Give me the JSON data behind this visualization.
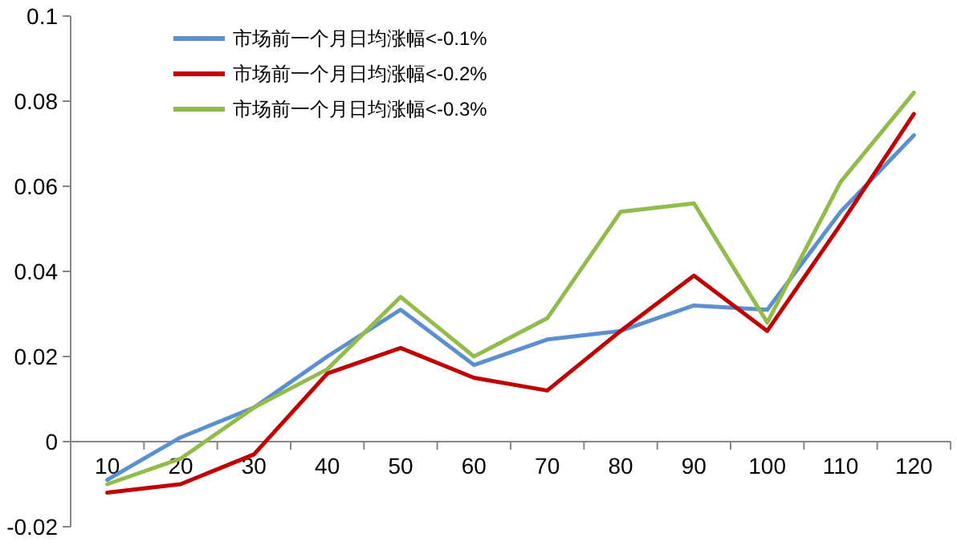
{
  "chart_data": {
    "type": "line",
    "categories": [
      "10",
      "20",
      "30",
      "40",
      "50",
      "60",
      "70",
      "80",
      "90",
      "100",
      "110",
      "120"
    ],
    "series": [
      {
        "name": "市场前一个月日均涨幅<-0.1%",
        "color": "#5b8fd0",
        "values": [
          -0.009,
          0.001,
          0.008,
          0.02,
          0.031,
          0.018,
          0.024,
          0.026,
          0.032,
          0.031,
          0.054,
          0.072
        ]
      },
      {
        "name": "市场前一个月日均涨幅<-0.2%",
        "color": "#c00000",
        "values": [
          -0.012,
          -0.01,
          -0.003,
          0.016,
          0.022,
          0.015,
          0.012,
          0.026,
          0.039,
          0.026,
          0.051,
          0.077
        ]
      },
      {
        "name": "市场前一个月日均涨幅<-0.3%",
        "color": "#92bb4a",
        "values": [
          -0.01,
          -0.004,
          0.008,
          0.017,
          0.034,
          0.02,
          0.029,
          0.054,
          0.056,
          0.028,
          0.061,
          0.082
        ]
      }
    ],
    "ylim": [
      -0.02,
      0.1
    ],
    "yticks": [
      -0.02,
      0,
      0.02,
      0.04,
      0.06,
      0.08,
      0.1
    ],
    "legend": "top left",
    "marker": "none",
    "line_style": "solid"
  }
}
